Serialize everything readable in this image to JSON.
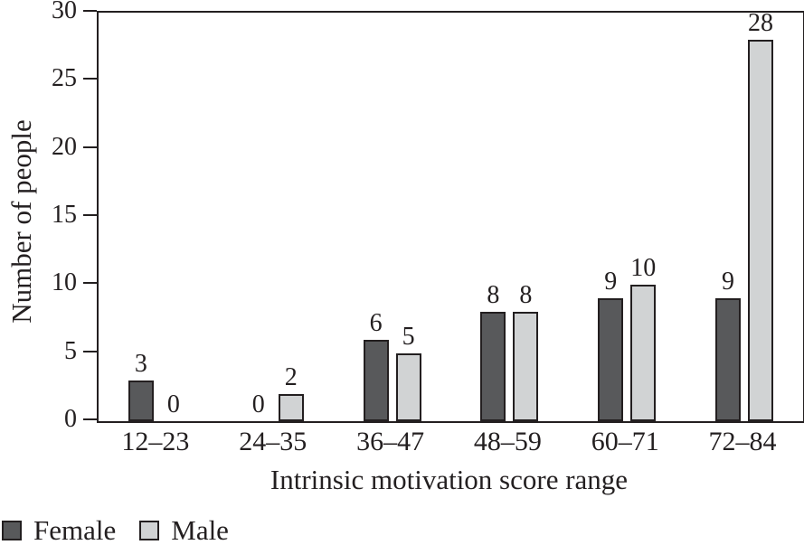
{
  "chart_data": {
    "type": "bar",
    "title": "",
    "categories": [
      "12–23",
      "24–35",
      "36–47",
      "48–59",
      "60–71",
      "72–84"
    ],
    "series": [
      {
        "name": "Female",
        "color": "#58595b",
        "values": [
          3,
          0,
          6,
          8,
          9,
          9
        ]
      },
      {
        "name": "Male",
        "color": "#d1d3d4",
        "values": [
          0,
          2,
          5,
          8,
          10,
          28
        ]
      }
    ],
    "xlabel": "Intrinsic motivation score range",
    "ylabel": "Number of people",
    "ylim": [
      0,
      30
    ],
    "yticks": [
      0,
      5,
      10,
      15,
      20,
      25,
      30
    ],
    "grid": false,
    "bar_value_labels": true,
    "legend_position": "bottom-left",
    "frame": "full-box"
  },
  "colors": {
    "axis": "#231f20",
    "text": "#231f20",
    "background": "#ffffff",
    "female_bar": "#58595b",
    "male_bar": "#d1d3d4"
  },
  "legend": {
    "items": [
      {
        "label": "Female",
        "color": "#58595b"
      },
      {
        "label": "Male",
        "color": "#d1d3d4"
      }
    ]
  }
}
